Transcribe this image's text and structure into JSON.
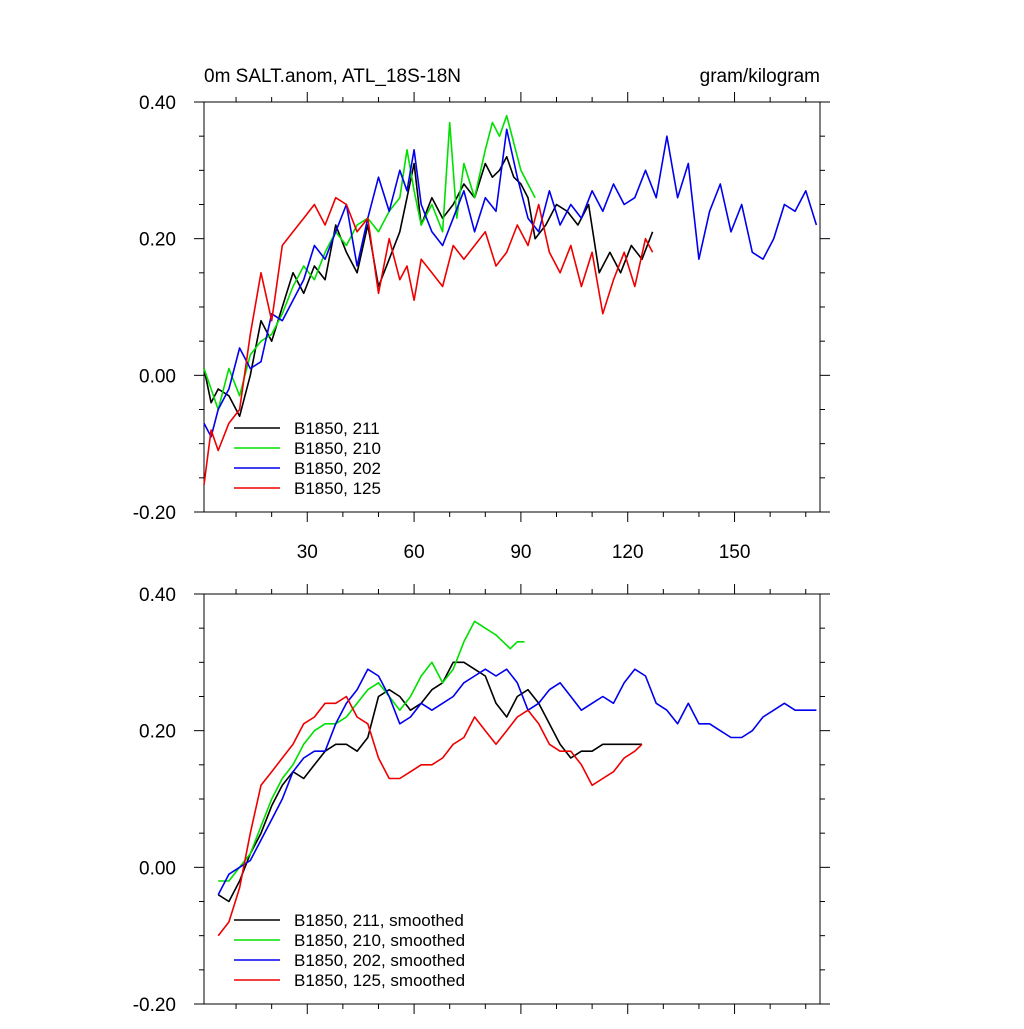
{
  "chart_data": [
    {
      "type": "line",
      "title": "0m SALT.anom, ATL_18S-18N",
      "units": "gram/kilogram",
      "xlabel": "",
      "ylabel": "",
      "xlim": [
        1,
        174
      ],
      "ylim": [
        -0.2,
        0.4
      ],
      "xticks": [
        30,
        60,
        90,
        120,
        150
      ],
      "xtick_labels": [
        "30",
        "60",
        "90",
        "120",
        "150"
      ],
      "yticks": [
        -0.2,
        0.0,
        0.2,
        0.4
      ],
      "ytick_labels": [
        "-0.20",
        "0.00",
        "0.20",
        "0.40"
      ],
      "legend_position": "bottom-left",
      "series": [
        {
          "name": "B1850, 211",
          "color": "#000000",
          "x": [
            1,
            3,
            5,
            8,
            11,
            14,
            17,
            20,
            23,
            26,
            29,
            32,
            35,
            38,
            41,
            44,
            47,
            50,
            53,
            56,
            58,
            60,
            62,
            65,
            68,
            71,
            74,
            77,
            80,
            82,
            84,
            86,
            88,
            90,
            92,
            94,
            97,
            100,
            103,
            106,
            109,
            112,
            115,
            118,
            121,
            124,
            127
          ],
          "y": [
            0.01,
            -0.04,
            -0.02,
            -0.03,
            -0.06,
            0.0,
            0.08,
            0.05,
            0.1,
            0.15,
            0.12,
            0.16,
            0.14,
            0.22,
            0.18,
            0.15,
            0.22,
            0.13,
            0.17,
            0.21,
            0.26,
            0.31,
            0.22,
            0.26,
            0.23,
            0.25,
            0.28,
            0.26,
            0.31,
            0.29,
            0.3,
            0.32,
            0.29,
            0.28,
            0.26,
            0.2,
            0.22,
            0.25,
            0.24,
            0.22,
            0.25,
            0.15,
            0.18,
            0.15,
            0.19,
            0.17,
            0.21
          ]
        },
        {
          "name": "B1850, 210",
          "color": "#00e000",
          "x": [
            1,
            3,
            5,
            8,
            11,
            14,
            17,
            20,
            23,
            26,
            29,
            32,
            35,
            38,
            41,
            44,
            47,
            50,
            53,
            56,
            58,
            60,
            62,
            65,
            68,
            70,
            72,
            74,
            77,
            80,
            82,
            84,
            86,
            88,
            90,
            92,
            94
          ],
          "y": [
            0.01,
            -0.02,
            -0.05,
            0.01,
            -0.03,
            0.03,
            0.05,
            0.06,
            0.09,
            0.13,
            0.16,
            0.14,
            0.18,
            0.21,
            0.19,
            0.22,
            0.23,
            0.21,
            0.24,
            0.26,
            0.33,
            0.27,
            0.22,
            0.25,
            0.21,
            0.37,
            0.23,
            0.31,
            0.26,
            0.33,
            0.37,
            0.35,
            0.38,
            0.34,
            0.3,
            0.28,
            0.26
          ]
        },
        {
          "name": "B1850, 202",
          "color": "#0000ee",
          "x": [
            1,
            3,
            5,
            8,
            11,
            14,
            17,
            20,
            23,
            26,
            29,
            32,
            35,
            38,
            41,
            44,
            47,
            50,
            53,
            56,
            58,
            60,
            62,
            65,
            68,
            71,
            74,
            77,
            80,
            83,
            86,
            89,
            92,
            95,
            98,
            101,
            104,
            107,
            110,
            113,
            116,
            119,
            122,
            125,
            128,
            131,
            134,
            137,
            140,
            143,
            146,
            149,
            152,
            155,
            158,
            161,
            164,
            167,
            170,
            173
          ],
          "y": [
            -0.07,
            -0.09,
            -0.05,
            -0.02,
            0.04,
            0.01,
            0.02,
            0.09,
            0.08,
            0.11,
            0.14,
            0.19,
            0.17,
            0.21,
            0.25,
            0.16,
            0.23,
            0.29,
            0.24,
            0.3,
            0.27,
            0.33,
            0.25,
            0.21,
            0.19,
            0.23,
            0.27,
            0.21,
            0.26,
            0.24,
            0.36,
            0.29,
            0.23,
            0.21,
            0.27,
            0.22,
            0.25,
            0.23,
            0.27,
            0.24,
            0.28,
            0.25,
            0.26,
            0.3,
            0.26,
            0.35,
            0.26,
            0.31,
            0.17,
            0.24,
            0.28,
            0.21,
            0.25,
            0.18,
            0.17,
            0.2,
            0.25,
            0.24,
            0.27,
            0.22
          ]
        },
        {
          "name": "B1850, 125",
          "color": "#ee0000",
          "x": [
            1,
            3,
            5,
            8,
            11,
            14,
            17,
            20,
            23,
            26,
            29,
            32,
            35,
            38,
            41,
            44,
            47,
            50,
            53,
            56,
            58,
            60,
            62,
            65,
            68,
            71,
            74,
            77,
            80,
            83,
            86,
            89,
            92,
            95,
            98,
            101,
            104,
            107,
            110,
            113,
            116,
            119,
            122,
            125,
            127
          ],
          "y": [
            -0.16,
            -0.08,
            -0.11,
            -0.07,
            -0.05,
            0.06,
            0.15,
            0.08,
            0.19,
            0.21,
            0.23,
            0.25,
            0.22,
            0.26,
            0.25,
            0.21,
            0.23,
            0.12,
            0.2,
            0.14,
            0.16,
            0.11,
            0.17,
            0.15,
            0.13,
            0.19,
            0.17,
            0.19,
            0.21,
            0.16,
            0.18,
            0.22,
            0.19,
            0.25,
            0.18,
            0.15,
            0.19,
            0.13,
            0.18,
            0.09,
            0.14,
            0.18,
            0.13,
            0.2,
            0.18
          ]
        }
      ]
    },
    {
      "type": "line",
      "title": "",
      "xlabel": "",
      "ylabel": "",
      "xlim": [
        1,
        174
      ],
      "ylim": [
        -0.2,
        0.4
      ],
      "xticks": [
        30,
        60,
        90,
        120,
        150
      ],
      "xtick_labels": [],
      "yticks": [
        -0.2,
        0.0,
        0.2,
        0.4
      ],
      "ytick_labels": [
        "-0.20",
        "0.00",
        "0.20",
        "0.40"
      ],
      "legend_position": "bottom-left",
      "series": [
        {
          "name": "B1850, 211, smoothed",
          "color": "#000000",
          "x": [
            5,
            8,
            11,
            14,
            17,
            20,
            23,
            26,
            29,
            32,
            35,
            38,
            41,
            44,
            47,
            50,
            53,
            56,
            59,
            62,
            65,
            68,
            71,
            74,
            77,
            80,
            83,
            86,
            89,
            92,
            95,
            98,
            101,
            104,
            107,
            110,
            113,
            116,
            119,
            122,
            124
          ],
          "y": [
            -0.04,
            -0.05,
            -0.02,
            0.02,
            0.05,
            0.09,
            0.12,
            0.14,
            0.13,
            0.15,
            0.17,
            0.18,
            0.18,
            0.17,
            0.19,
            0.25,
            0.26,
            0.25,
            0.23,
            0.24,
            0.26,
            0.27,
            0.3,
            0.3,
            0.29,
            0.28,
            0.24,
            0.22,
            0.25,
            0.26,
            0.24,
            0.21,
            0.18,
            0.16,
            0.17,
            0.17,
            0.18,
            0.18,
            0.18,
            0.18,
            0.18
          ]
        },
        {
          "name": "B1850, 210, smoothed",
          "color": "#00e000",
          "x": [
            5,
            8,
            11,
            14,
            17,
            20,
            23,
            26,
            29,
            32,
            35,
            38,
            41,
            44,
            47,
            50,
            53,
            56,
            59,
            62,
            65,
            68,
            71,
            74,
            77,
            80,
            83,
            85,
            87,
            89,
            91
          ],
          "y": [
            -0.02,
            -0.02,
            0.0,
            0.02,
            0.06,
            0.1,
            0.13,
            0.15,
            0.18,
            0.2,
            0.21,
            0.21,
            0.22,
            0.24,
            0.26,
            0.27,
            0.25,
            0.23,
            0.25,
            0.28,
            0.3,
            0.27,
            0.29,
            0.33,
            0.36,
            0.35,
            0.34,
            0.33,
            0.32,
            0.33,
            0.33
          ]
        },
        {
          "name": "B1850, 202, smoothed",
          "color": "#0000ee",
          "x": [
            5,
            8,
            11,
            14,
            17,
            20,
            23,
            26,
            29,
            32,
            35,
            38,
            41,
            44,
            47,
            50,
            53,
            56,
            59,
            62,
            65,
            68,
            71,
            74,
            77,
            80,
            83,
            86,
            89,
            92,
            95,
            98,
            101,
            104,
            107,
            110,
            113,
            116,
            119,
            122,
            125,
            128,
            131,
            134,
            137,
            140,
            143,
            146,
            149,
            152,
            155,
            158,
            161,
            164,
            167,
            170,
            173
          ],
          "y": [
            -0.04,
            -0.01,
            0.0,
            0.01,
            0.04,
            0.07,
            0.1,
            0.14,
            0.16,
            0.17,
            0.17,
            0.21,
            0.24,
            0.26,
            0.29,
            0.28,
            0.25,
            0.21,
            0.22,
            0.24,
            0.23,
            0.24,
            0.25,
            0.27,
            0.28,
            0.29,
            0.28,
            0.29,
            0.27,
            0.23,
            0.24,
            0.26,
            0.27,
            0.25,
            0.23,
            0.24,
            0.25,
            0.24,
            0.27,
            0.29,
            0.28,
            0.24,
            0.23,
            0.21,
            0.24,
            0.21,
            0.21,
            0.2,
            0.19,
            0.19,
            0.2,
            0.22,
            0.23,
            0.24,
            0.23,
            0.23,
            0.23
          ]
        },
        {
          "name": "B1850, 125, smoothed",
          "color": "#ee0000",
          "x": [
            5,
            8,
            11,
            14,
            17,
            20,
            23,
            26,
            29,
            32,
            35,
            38,
            41,
            44,
            47,
            50,
            53,
            56,
            59,
            62,
            65,
            68,
            71,
            74,
            77,
            80,
            83,
            86,
            89,
            92,
            95,
            98,
            101,
            104,
            107,
            110,
            113,
            116,
            119,
            122,
            124
          ],
          "y": [
            -0.1,
            -0.08,
            -0.03,
            0.05,
            0.12,
            0.14,
            0.16,
            0.18,
            0.21,
            0.22,
            0.24,
            0.24,
            0.25,
            0.22,
            0.21,
            0.16,
            0.13,
            0.13,
            0.14,
            0.15,
            0.15,
            0.16,
            0.18,
            0.19,
            0.22,
            0.2,
            0.18,
            0.2,
            0.22,
            0.23,
            0.21,
            0.18,
            0.17,
            0.17,
            0.15,
            0.12,
            0.13,
            0.14,
            0.16,
            0.17,
            0.18
          ]
        }
      ]
    }
  ]
}
